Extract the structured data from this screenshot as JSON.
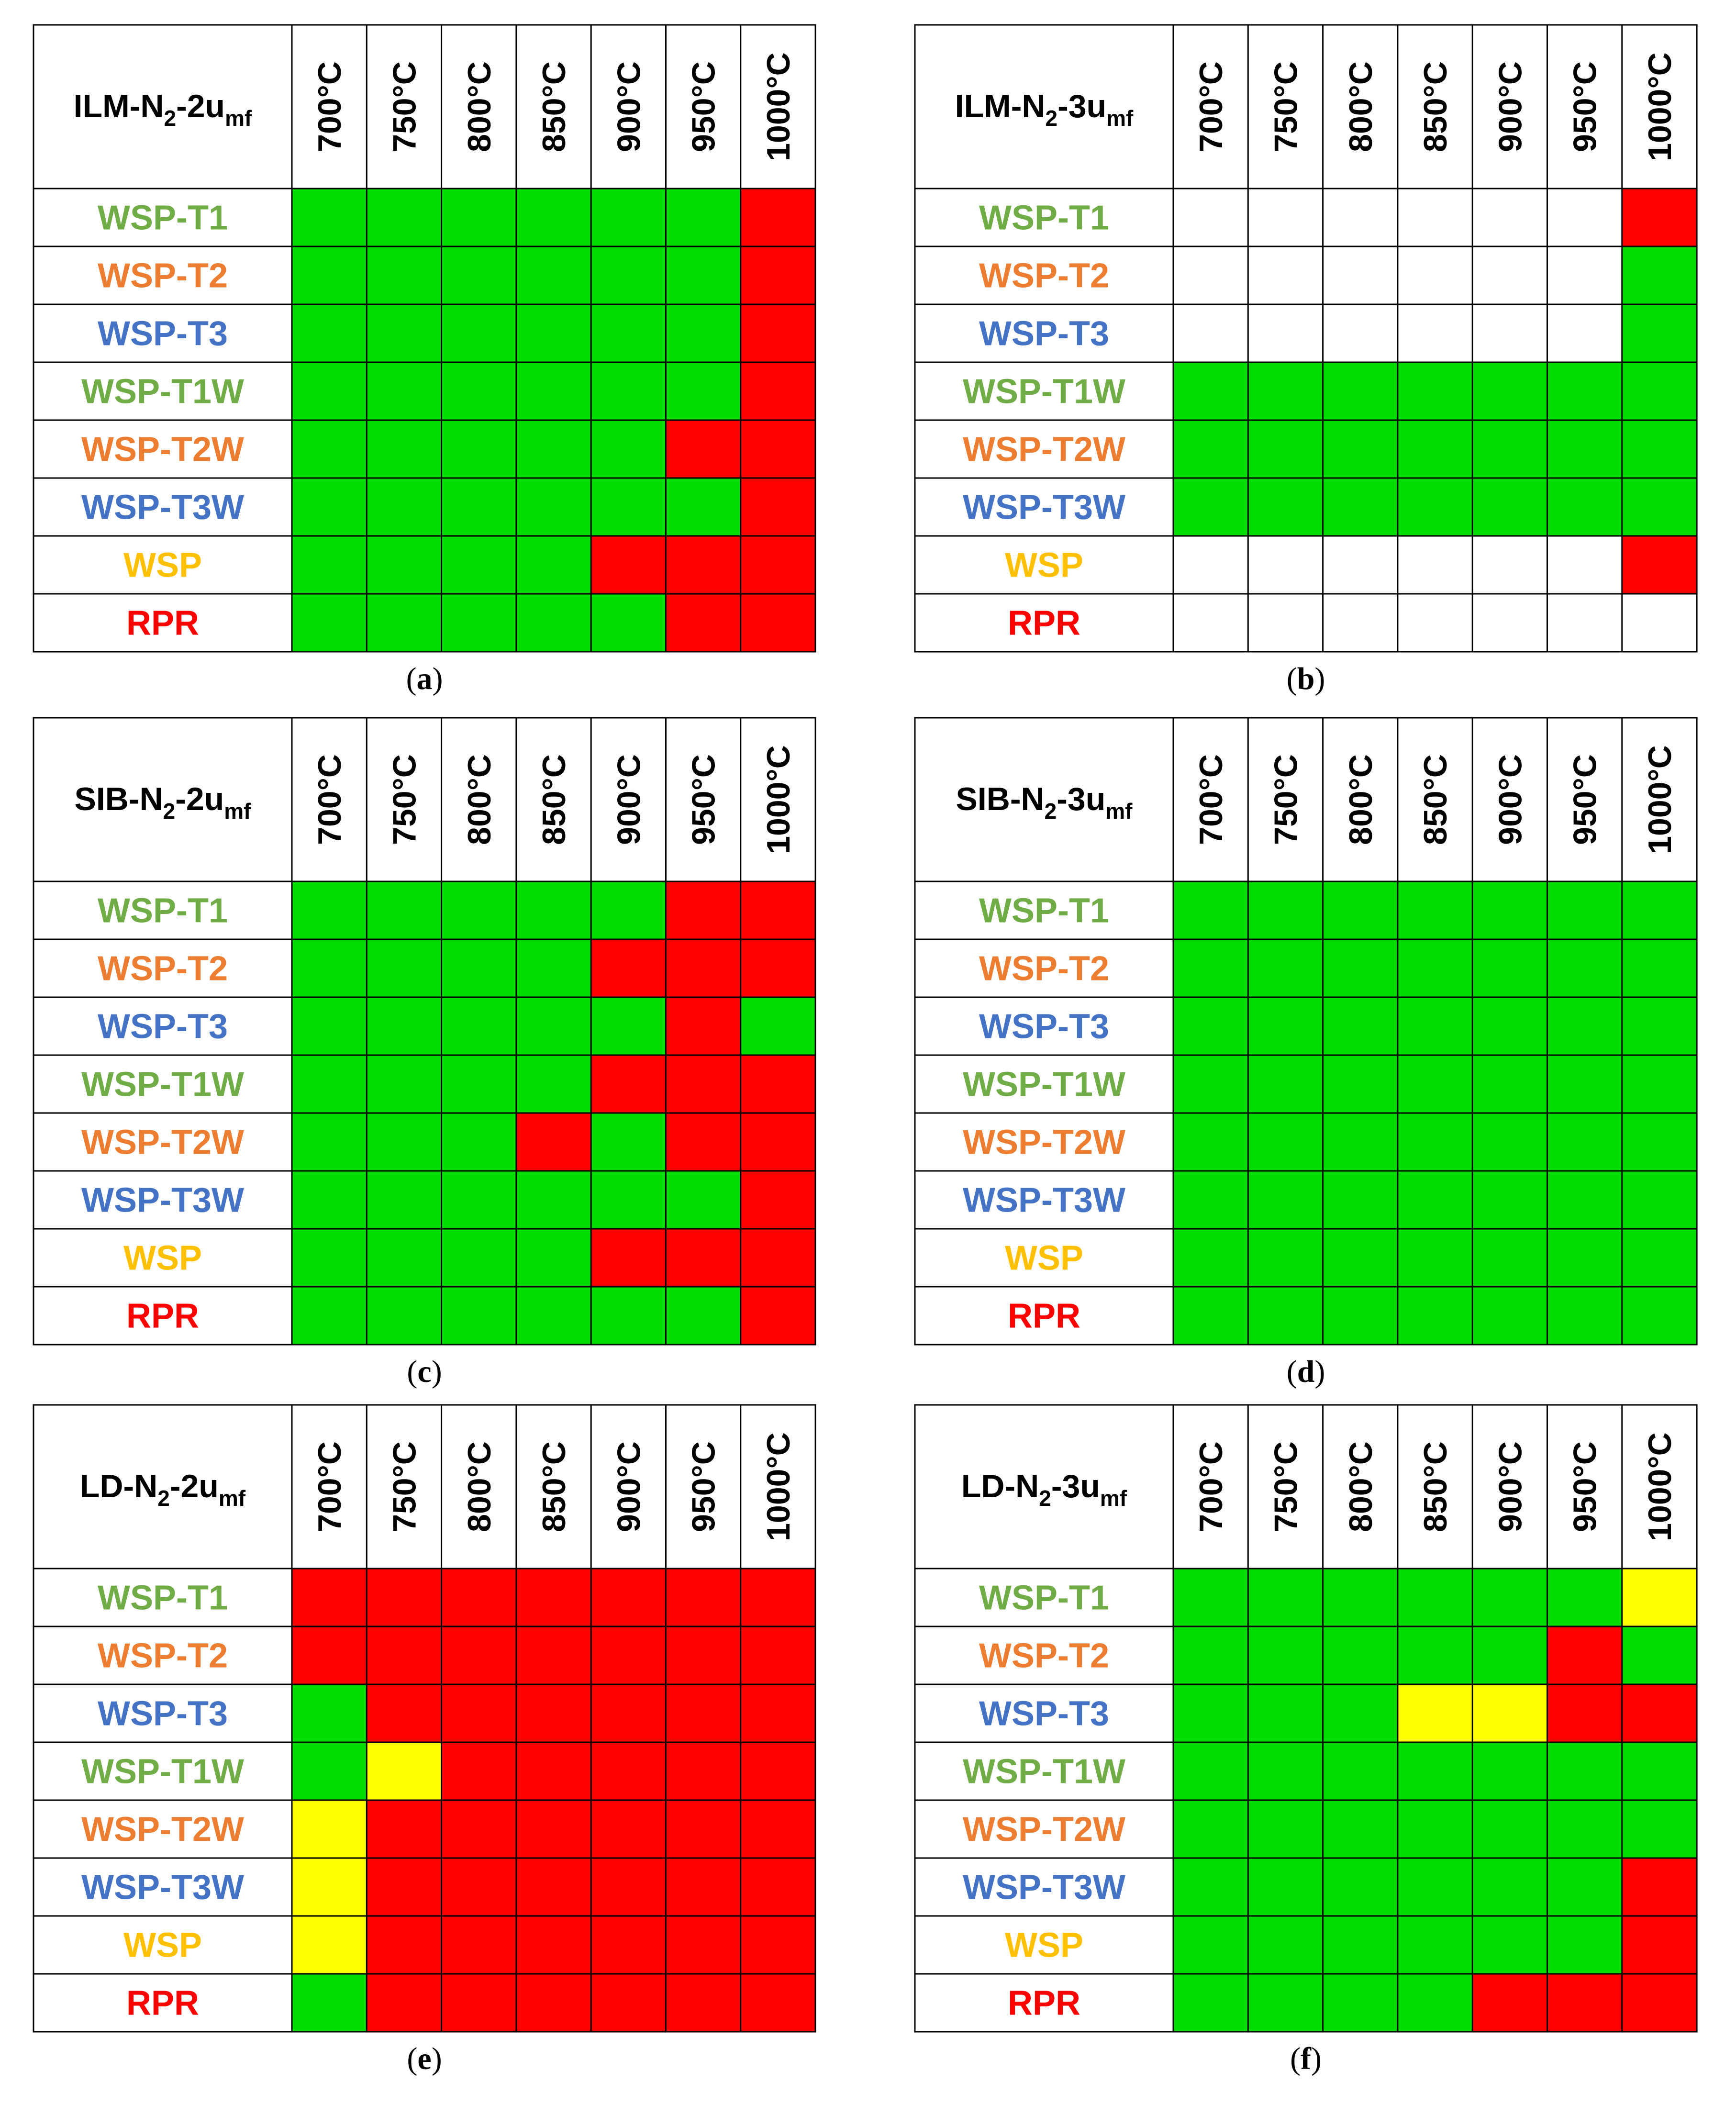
{
  "colors": {
    "green": "#00DD00",
    "red": "#FF0000",
    "yellow": "#FFFF00",
    "white": "#FFFFFF",
    "label_green": "#70AD47",
    "label_orange": "#ED7D31",
    "label_blue": "#4472C4",
    "label_yellow": "#FFC000",
    "label_red": "#FF0000"
  },
  "chart_data": [
    {
      "type": "table",
      "panel": "a",
      "caption": "(a)",
      "title": {
        "base": "ILM-N",
        "sub": "2",
        "mid": "-2u",
        "sub2": "mf"
      },
      "columns": [
        "700°C",
        "750°C",
        "800°C",
        "850°C",
        "900°C",
        "950°C",
        "1000°C"
      ],
      "rows": [
        "WSP-T1",
        "WSP-T2",
        "WSP-T3",
        "WSP-T1W",
        "WSP-T2W",
        "WSP-T3W",
        "WSP",
        "RPR"
      ],
      "row_colors": [
        "label_green",
        "label_orange",
        "label_blue",
        "label_green",
        "label_orange",
        "label_blue",
        "label_yellow",
        "label_red"
      ],
      "cells": [
        [
          "G",
          "G",
          "G",
          "G",
          "G",
          "G",
          "R"
        ],
        [
          "G",
          "G",
          "G",
          "G",
          "G",
          "G",
          "R"
        ],
        [
          "G",
          "G",
          "G",
          "G",
          "G",
          "G",
          "R"
        ],
        [
          "G",
          "G",
          "G",
          "G",
          "G",
          "G",
          "R"
        ],
        [
          "G",
          "G",
          "G",
          "G",
          "G",
          "R",
          "R"
        ],
        [
          "G",
          "G",
          "G",
          "G",
          "G",
          "G",
          "R"
        ],
        [
          "G",
          "G",
          "G",
          "G",
          "R",
          "R",
          "R"
        ],
        [
          "G",
          "G",
          "G",
          "G",
          "G",
          "R",
          "R"
        ]
      ]
    },
    {
      "type": "table",
      "panel": "b",
      "caption": "(b)",
      "title": {
        "base": "ILM-N",
        "sub": "2",
        "mid": "-3u",
        "sub2": "mf"
      },
      "columns": [
        "700°C",
        "750°C",
        "800°C",
        "850°C",
        "900°C",
        "950°C",
        "1000°C"
      ],
      "rows": [
        "WSP-T1",
        "WSP-T2",
        "WSP-T3",
        "WSP-T1W",
        "WSP-T2W",
        "WSP-T3W",
        "WSP",
        "RPR"
      ],
      "row_colors": [
        "label_green",
        "label_orange",
        "label_blue",
        "label_green",
        "label_orange",
        "label_blue",
        "label_yellow",
        "label_red"
      ],
      "cells": [
        [
          "W",
          "W",
          "W",
          "W",
          "W",
          "W",
          "R"
        ],
        [
          "W",
          "W",
          "W",
          "W",
          "W",
          "W",
          "G"
        ],
        [
          "W",
          "W",
          "W",
          "W",
          "W",
          "W",
          "G"
        ],
        [
          "G",
          "G",
          "G",
          "G",
          "G",
          "G",
          "G"
        ],
        [
          "G",
          "G",
          "G",
          "G",
          "G",
          "G",
          "G"
        ],
        [
          "G",
          "G",
          "G",
          "G",
          "G",
          "G",
          "G"
        ],
        [
          "W",
          "W",
          "W",
          "W",
          "W",
          "W",
          "R"
        ],
        [
          "W",
          "W",
          "W",
          "W",
          "W",
          "W",
          "W"
        ]
      ]
    },
    {
      "type": "table",
      "panel": "c",
      "caption": "(c)",
      "title": {
        "base": "SIB-N",
        "sub": "2",
        "mid": "-2u",
        "sub2": "mf"
      },
      "columns": [
        "700°C",
        "750°C",
        "800°C",
        "850°C",
        "900°C",
        "950°C",
        "1000°C"
      ],
      "rows": [
        "WSP-T1",
        "WSP-T2",
        "WSP-T3",
        "WSP-T1W",
        "WSP-T2W",
        "WSP-T3W",
        "WSP",
        "RPR"
      ],
      "row_colors": [
        "label_green",
        "label_orange",
        "label_blue",
        "label_green",
        "label_orange",
        "label_blue",
        "label_yellow",
        "label_red"
      ],
      "cells": [
        [
          "G",
          "G",
          "G",
          "G",
          "G",
          "R",
          "R"
        ],
        [
          "G",
          "G",
          "G",
          "G",
          "R",
          "R",
          "R"
        ],
        [
          "G",
          "G",
          "G",
          "G",
          "G",
          "R",
          "G"
        ],
        [
          "G",
          "G",
          "G",
          "G",
          "R",
          "R",
          "R"
        ],
        [
          "G",
          "G",
          "G",
          "R",
          "G",
          "R",
          "R"
        ],
        [
          "G",
          "G",
          "G",
          "G",
          "G",
          "G",
          "R"
        ],
        [
          "G",
          "G",
          "G",
          "G",
          "R",
          "R",
          "R"
        ],
        [
          "G",
          "G",
          "G",
          "G",
          "G",
          "G",
          "R"
        ]
      ]
    },
    {
      "type": "table",
      "panel": "d",
      "caption": "(d)",
      "title": {
        "base": "SIB-N",
        "sub": "2",
        "mid": "-3u",
        "sub2": "mf"
      },
      "columns": [
        "700°C",
        "750°C",
        "800°C",
        "850°C",
        "900°C",
        "950°C",
        "1000°C"
      ],
      "rows": [
        "WSP-T1",
        "WSP-T2",
        "WSP-T3",
        "WSP-T1W",
        "WSP-T2W",
        "WSP-T3W",
        "WSP",
        "RPR"
      ],
      "row_colors": [
        "label_green",
        "label_orange",
        "label_blue",
        "label_green",
        "label_orange",
        "label_blue",
        "label_yellow",
        "label_red"
      ],
      "cells": [
        [
          "G",
          "G",
          "G",
          "G",
          "G",
          "G",
          "G"
        ],
        [
          "G",
          "G",
          "G",
          "G",
          "G",
          "G",
          "G"
        ],
        [
          "G",
          "G",
          "G",
          "G",
          "G",
          "G",
          "G"
        ],
        [
          "G",
          "G",
          "G",
          "G",
          "G",
          "G",
          "G"
        ],
        [
          "G",
          "G",
          "G",
          "G",
          "G",
          "G",
          "G"
        ],
        [
          "G",
          "G",
          "G",
          "G",
          "G",
          "G",
          "G"
        ],
        [
          "G",
          "G",
          "G",
          "G",
          "G",
          "G",
          "G"
        ],
        [
          "G",
          "G",
          "G",
          "G",
          "G",
          "G",
          "G"
        ]
      ]
    },
    {
      "type": "table",
      "panel": "e",
      "caption": "(e)",
      "title": {
        "base": "LD-N",
        "sub": "2",
        "mid": "-2u",
        "sub2": "mf"
      },
      "columns": [
        "700°C",
        "750°C",
        "800°C",
        "850°C",
        "900°C",
        "950°C",
        "1000°C"
      ],
      "rows": [
        "WSP-T1",
        "WSP-T2",
        "WSP-T3",
        "WSP-T1W",
        "WSP-T2W",
        "WSP-T3W",
        "WSP",
        "RPR"
      ],
      "row_colors": [
        "label_green",
        "label_orange",
        "label_blue",
        "label_green",
        "label_orange",
        "label_blue",
        "label_yellow",
        "label_red"
      ],
      "cells": [
        [
          "R",
          "R",
          "R",
          "R",
          "R",
          "R",
          "R"
        ],
        [
          "R",
          "R",
          "R",
          "R",
          "R",
          "R",
          "R"
        ],
        [
          "G",
          "R",
          "R",
          "R",
          "R",
          "R",
          "R"
        ],
        [
          "G",
          "Y",
          "R",
          "R",
          "R",
          "R",
          "R"
        ],
        [
          "Y",
          "R",
          "R",
          "R",
          "R",
          "R",
          "R"
        ],
        [
          "Y",
          "R",
          "R",
          "R",
          "R",
          "R",
          "R"
        ],
        [
          "Y",
          "R",
          "R",
          "R",
          "R",
          "R",
          "R"
        ],
        [
          "G",
          "R",
          "R",
          "R",
          "R",
          "R",
          "R"
        ]
      ]
    },
    {
      "type": "table",
      "panel": "f",
      "caption": "(f)",
      "title": {
        "base": "LD-N",
        "sub": "2",
        "mid": "-3u",
        "sub2": "mf"
      },
      "columns": [
        "700°C",
        "750°C",
        "800°C",
        "850°C",
        "900°C",
        "950°C",
        "1000°C"
      ],
      "rows": [
        "WSP-T1",
        "WSP-T2",
        "WSP-T3",
        "WSP-T1W",
        "WSP-T2W",
        "WSP-T3W",
        "WSP",
        "RPR"
      ],
      "row_colors": [
        "label_green",
        "label_orange",
        "label_blue",
        "label_green",
        "label_orange",
        "label_blue",
        "label_yellow",
        "label_red"
      ],
      "cells": [
        [
          "G",
          "G",
          "G",
          "G",
          "G",
          "G",
          "Y"
        ],
        [
          "G",
          "G",
          "G",
          "G",
          "G",
          "R",
          "G"
        ],
        [
          "G",
          "G",
          "G",
          "Y",
          "Y",
          "R",
          "R"
        ],
        [
          "G",
          "G",
          "G",
          "G",
          "G",
          "G",
          "G"
        ],
        [
          "G",
          "G",
          "G",
          "G",
          "G",
          "G",
          "G"
        ],
        [
          "G",
          "G",
          "G",
          "G",
          "G",
          "G",
          "R"
        ],
        [
          "G",
          "G",
          "G",
          "G",
          "G",
          "G",
          "R"
        ],
        [
          "G",
          "G",
          "G",
          "G",
          "R",
          "R",
          "R"
        ]
      ]
    }
  ]
}
